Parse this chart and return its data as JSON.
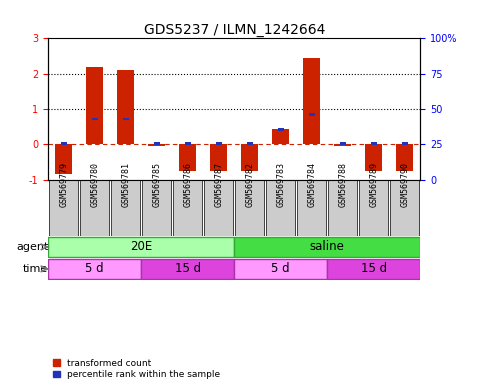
{
  "title": "GDS5237 / ILMN_1242664",
  "samples": [
    "GSM569779",
    "GSM569780",
    "GSM569781",
    "GSM569785",
    "GSM569786",
    "GSM569787",
    "GSM569782",
    "GSM569783",
    "GSM569784",
    "GSM569788",
    "GSM569789",
    "GSM569790"
  ],
  "red_values": [
    -0.85,
    2.2,
    2.1,
    -0.05,
    -0.75,
    -0.75,
    -0.75,
    0.45,
    2.45,
    -0.05,
    -0.75,
    -0.75
  ],
  "blue_values": [
    0.02,
    0.72,
    0.72,
    0.02,
    0.02,
    0.02,
    0.02,
    0.42,
    0.85,
    0.02,
    0.02,
    0.02
  ],
  "ylim": [
    -1,
    3
  ],
  "right_ylim": [
    0,
    100
  ],
  "right_yticks": [
    0,
    25,
    50,
    75,
    100
  ],
  "right_yticklabels": [
    "0",
    "25",
    "50",
    "75",
    "100%"
  ],
  "left_yticks": [
    -1,
    0,
    1,
    2,
    3
  ],
  "agent_groups": [
    {
      "label": "20E",
      "start": 0,
      "end": 6,
      "color": "#AAFFAA"
    },
    {
      "label": "saline",
      "start": 6,
      "end": 12,
      "color": "#44DD44"
    }
  ],
  "time_groups": [
    {
      "label": "5 d",
      "start": 0,
      "end": 3,
      "color": "#FF99FF"
    },
    {
      "label": "15 d",
      "start": 3,
      "end": 6,
      "color": "#DD44DD"
    },
    {
      "label": "5 d",
      "start": 6,
      "end": 9,
      "color": "#FF99FF"
    },
    {
      "label": "15 d",
      "start": 9,
      "end": 12,
      "color": "#DD44DD"
    }
  ],
  "bar_width": 0.55,
  "blue_bar_width": 0.18,
  "blue_bar_height": 0.08,
  "label_red": "transformed count",
  "label_blue": "percentile rank within the sample",
  "agent_label": "agent",
  "time_label": "time",
  "title_fontsize": 10,
  "tick_fontsize": 7,
  "label_fontsize": 8,
  "sample_fontsize": 6,
  "annotation_fontsize": 8.5,
  "bg_color": "#ffffff",
  "bar_color_red": "#CC2200",
  "bar_color_blue": "#2233BB",
  "sample_bg": "#CCCCCC",
  "agent_border": "#33AA33",
  "time_border": "#AA33AA"
}
